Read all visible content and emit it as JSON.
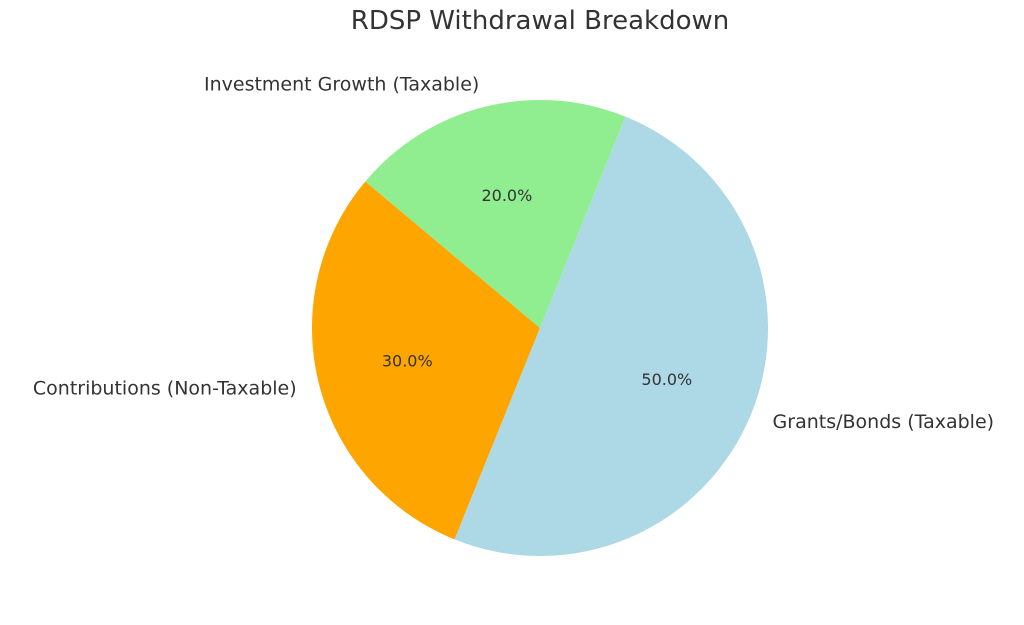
{
  "chart_data": {
    "type": "pie",
    "title": "RDSP Withdrawal Breakdown",
    "slices": [
      {
        "label": "Contributions (Non-Taxable)",
        "value": 30.0,
        "pct_label": "30.0%",
        "color": "#FFA500"
      },
      {
        "label": "Grants/Bonds (Taxable)",
        "value": 50.0,
        "pct_label": "50.0%",
        "color": "#ADD8E6"
      },
      {
        "label": "Investment Growth (Taxable)",
        "value": 20.0,
        "pct_label": "20.0%",
        "color": "#90EE90"
      }
    ],
    "start_angle_deg": 140,
    "direction": "counterclockwise",
    "legend": "none"
  }
}
